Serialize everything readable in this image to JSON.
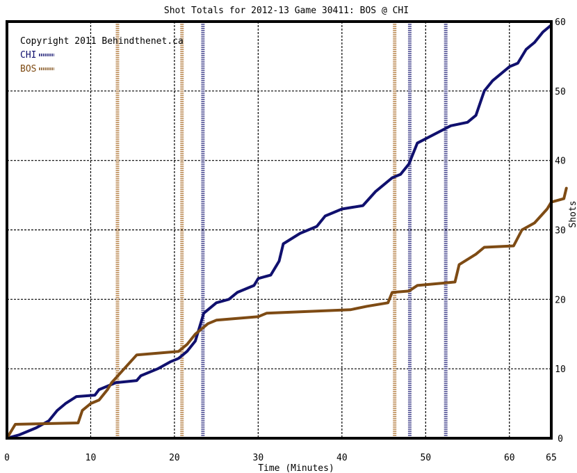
{
  "chart_data": {
    "type": "line",
    "title": "Shot Totals for 2012-13 Game 30411: BOS @ CHI",
    "xlabel": "Time (Minutes)",
    "ylabel": "Shots",
    "xlim": [
      0,
      65
    ],
    "ylim": [
      0,
      60
    ],
    "x_ticks": [
      0,
      10,
      20,
      30,
      40,
      50,
      60,
      65
    ],
    "y_ticks": [
      0,
      10,
      20,
      30,
      40,
      50,
      60
    ],
    "grid": true,
    "legend_placement": "top-left",
    "copyright": "Copyright 2011 Behindthenet.ca",
    "series": [
      {
        "name": "CHI",
        "color": "#10106e",
        "points": [
          [
            0,
            0
          ],
          [
            1.5,
            0.5
          ],
          [
            3.5,
            1.5
          ],
          [
            5,
            2.5
          ],
          [
            6,
            4
          ],
          [
            7,
            5
          ],
          [
            8.3,
            6
          ],
          [
            10.5,
            6.2
          ],
          [
            11,
            7
          ],
          [
            12,
            7.5
          ],
          [
            13,
            8
          ],
          [
            15.5,
            8.3
          ],
          [
            16,
            9
          ],
          [
            18,
            10
          ],
          [
            19.5,
            11
          ],
          [
            20.5,
            11.5
          ],
          [
            21.5,
            12.5
          ],
          [
            22.5,
            14
          ],
          [
            23.5,
            18
          ],
          [
            25,
            19.5
          ],
          [
            26.5,
            20
          ],
          [
            27.5,
            21
          ],
          [
            29.5,
            22
          ],
          [
            30,
            23
          ],
          [
            31.5,
            23.5
          ],
          [
            32.5,
            25.5
          ],
          [
            33,
            28
          ],
          [
            35,
            29.5
          ],
          [
            37,
            30.5
          ],
          [
            38,
            32
          ],
          [
            40,
            33
          ],
          [
            42.5,
            33.5
          ],
          [
            44,
            35.5
          ],
          [
            45,
            36.5
          ],
          [
            46,
            37.5
          ],
          [
            47,
            38
          ],
          [
            48,
            39.5
          ],
          [
            49,
            42.5
          ],
          [
            53,
            45
          ],
          [
            55,
            45.5
          ],
          [
            56,
            46.5
          ],
          [
            57,
            50
          ],
          [
            58,
            51.5
          ],
          [
            60,
            53.5
          ],
          [
            61,
            54
          ],
          [
            62,
            56
          ],
          [
            63,
            57
          ],
          [
            64,
            58.5
          ],
          [
            65,
            59.5
          ]
        ]
      },
      {
        "name": "BOS",
        "color": "#7e4b14",
        "points": [
          [
            0,
            0
          ],
          [
            1,
            2
          ],
          [
            8.5,
            2.2
          ],
          [
            9,
            4
          ],
          [
            10,
            5
          ],
          [
            11,
            5.5
          ],
          [
            12,
            7
          ],
          [
            12.5,
            8
          ],
          [
            14,
            10
          ],
          [
            15.5,
            12
          ],
          [
            20.5,
            12.5
          ],
          [
            21.5,
            13.5
          ],
          [
            22.5,
            15
          ],
          [
            24,
            16.5
          ],
          [
            25,
            17
          ],
          [
            30,
            17.5
          ],
          [
            31,
            18
          ],
          [
            41,
            18.5
          ],
          [
            43,
            19
          ],
          [
            45.5,
            19.5
          ],
          [
            46,
            21
          ],
          [
            48,
            21.2
          ],
          [
            49,
            22
          ],
          [
            53.5,
            22.5
          ],
          [
            54,
            25
          ],
          [
            56,
            26.5
          ],
          [
            57,
            27.5
          ],
          [
            60.5,
            27.7
          ],
          [
            61.5,
            30
          ],
          [
            63,
            31
          ],
          [
            64.5,
            33
          ],
          [
            65,
            34
          ],
          [
            66.5,
            34.5
          ],
          [
            66.8,
            36
          ]
        ]
      }
    ],
    "markers": [
      {
        "x": 13.2,
        "team": "BOS",
        "color": "#c8a074"
      },
      {
        "x": 20.9,
        "team": "BOS",
        "color": "#c8a074"
      },
      {
        "x": 23.4,
        "team": "CHI",
        "color": "#7070a8"
      },
      {
        "x": 46.3,
        "team": "BOS",
        "color": "#c8a074"
      },
      {
        "x": 48.1,
        "team": "CHI",
        "color": "#7070a8"
      },
      {
        "x": 52.4,
        "team": "CHI",
        "color": "#7070a8"
      }
    ]
  }
}
